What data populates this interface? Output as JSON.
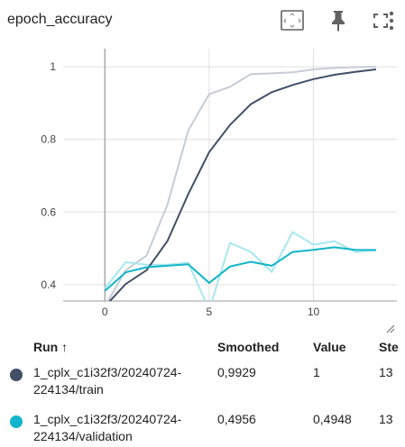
{
  "card": {
    "title": "epoch_accuracy",
    "toolbar": {
      "fit_icon": "fit-domain-icon",
      "pin_icon": "pin-icon",
      "fullscreen_icon": "fullscreen-icon",
      "menu_icon": "more-vert-icon"
    }
  },
  "chart_data": {
    "type": "line",
    "title": "",
    "xlabel": "",
    "ylabel": "",
    "xlim": [
      -2,
      14
    ],
    "ylim": [
      0.355,
      1.05
    ],
    "x_ticks": [
      0,
      5,
      10
    ],
    "y_ticks": [
      0.4,
      0.6,
      0.8,
      1
    ],
    "x_tick_labels": [
      "0",
      "5",
      "10"
    ],
    "y_tick_labels": [
      "0.4",
      "0.6",
      "0.8",
      "1"
    ],
    "grid": true,
    "series": [
      {
        "name": "1_cplx_c1i32f3/20240724-224134/train",
        "color": "#425066",
        "raw_color": "#c6ccd6",
        "x": [
          0,
          1,
          2,
          3,
          4,
          5,
          6,
          7,
          8,
          9,
          10,
          11,
          12,
          13
        ],
        "raw": [
          0.34,
          0.44,
          0.48,
          0.62,
          0.825,
          0.925,
          0.945,
          0.98,
          0.982,
          0.985,
          0.993,
          0.997,
          0.999,
          1.0
        ],
        "smoothed": [
          0.34,
          0.402,
          0.44,
          0.52,
          0.65,
          0.765,
          0.84,
          0.897,
          0.93,
          0.95,
          0.966,
          0.978,
          0.986,
          0.9929
        ]
      },
      {
        "name": "1_cplx_c1i32f3/20240724-224134/validation",
        "color": "#12b5cb",
        "raw_color": "#a8e7f0",
        "x": [
          0,
          1,
          2,
          3,
          4,
          5,
          6,
          7,
          8,
          9,
          10,
          11,
          12,
          13
        ],
        "raw": [
          0.39,
          0.462,
          0.455,
          0.455,
          0.46,
          0.33,
          0.515,
          0.49,
          0.435,
          0.545,
          0.51,
          0.52,
          0.49,
          0.4948
        ],
        "smoothed": [
          0.383,
          0.434,
          0.448,
          0.452,
          0.456,
          0.405,
          0.45,
          0.463,
          0.452,
          0.49,
          0.496,
          0.503,
          0.496,
          0.4956
        ]
      }
    ]
  },
  "table": {
    "headers": {
      "run": "Run ↑",
      "smoothed": "Smoothed",
      "value": "Value",
      "step": "Ste"
    },
    "rows": [
      {
        "color": "#425066",
        "run_line1": "1_cplx_c1i32f3/20240724-",
        "run_line2": "224134/train",
        "smoothed": "0,9929",
        "value": "1",
        "step": "13"
      },
      {
        "color": "#12b5cb",
        "run_line1": "1_cplx_c1i32f3/20240724-",
        "run_line2": "224134/validation",
        "smoothed": "0,4956",
        "value": "0,4948",
        "step": "13"
      }
    ]
  }
}
